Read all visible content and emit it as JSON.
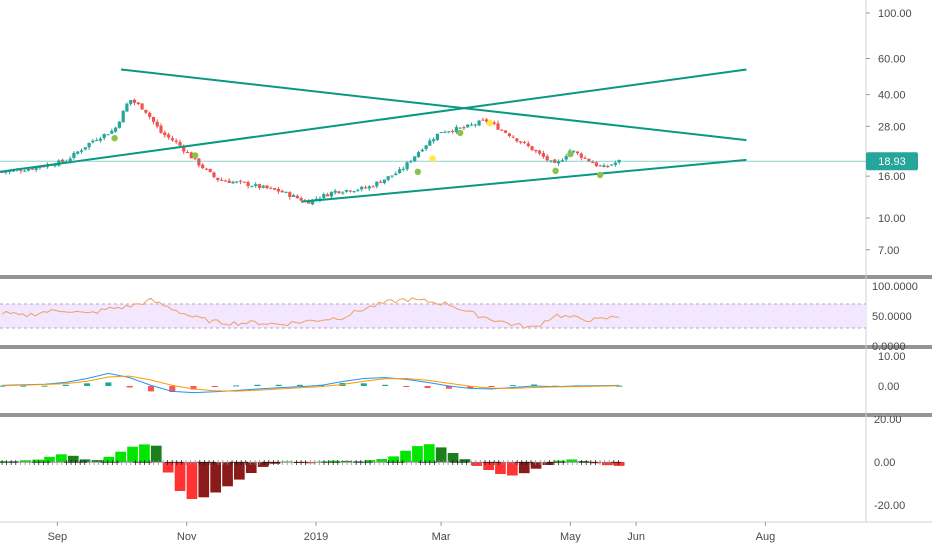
{
  "colors": {
    "up": "#26a69a",
    "down": "#ef5350",
    "trendline": "#089981",
    "rsi_line": "#f0a060",
    "rsi_band": "#f3e6ff",
    "macd_line": "#2196f3",
    "signal_line": "#ff9800",
    "squeeze_light_green": "#00e600",
    "squeeze_dark_green": "#1b7f1b",
    "squeeze_red": "#ff3333",
    "squeeze_dark_red": "#8b1a1a",
    "price_badge": "#26a69a",
    "marker_green": "#8bc34a",
    "marker_yellow": "#ffeb3b"
  },
  "price_badge": "18.93",
  "chart_data": [
    {
      "type": "candlestick",
      "pane": "price",
      "scale": "log",
      "ylim": [
        5.5,
        120
      ],
      "y_ticks": [
        "100.00",
        "60.00",
        "40.00",
        "28.00",
        "16.00",
        "10.00",
        "7.00"
      ],
      "x_ticks": [
        "Sep",
        "Nov",
        "2019",
        "Mar",
        "May",
        "Jun",
        "Aug"
      ],
      "last_price": 18.93,
      "approx_close_path": [
        {
          "x": "2018-08-01",
          "y": 16.5
        },
        {
          "x": "2018-08-20",
          "y": 17.5
        },
        {
          "x": "2018-09-05",
          "y": 19.0
        },
        {
          "x": "2018-09-18",
          "y": 24.0
        },
        {
          "x": "2018-09-28",
          "y": 27.0
        },
        {
          "x": "2018-10-05",
          "y": 38.0
        },
        {
          "x": "2018-10-12",
          "y": 34.0
        },
        {
          "x": "2018-10-20",
          "y": 26.0
        },
        {
          "x": "2018-10-28",
          "y": 23.0
        },
        {
          "x": "2018-11-05",
          "y": 19.0
        },
        {
          "x": "2018-11-15",
          "y": 15.5
        },
        {
          "x": "2018-12-01",
          "y": 14.5
        },
        {
          "x": "2018-12-15",
          "y": 13.5
        },
        {
          "x": "2018-12-28",
          "y": 12.0
        },
        {
          "x": "2019-01-10",
          "y": 13.5
        },
        {
          "x": "2019-01-25",
          "y": 14.0
        },
        {
          "x": "2019-02-10",
          "y": 17.0
        },
        {
          "x": "2019-02-20",
          "y": 22.0
        },
        {
          "x": "2019-03-01",
          "y": 26.5
        },
        {
          "x": "2019-03-12",
          "y": 27.5
        },
        {
          "x": "2019-03-22",
          "y": 30.0
        },
        {
          "x": "2019-04-01",
          "y": 26.0
        },
        {
          "x": "2019-04-12",
          "y": 22.0
        },
        {
          "x": "2019-04-24",
          "y": 18.0
        },
        {
          "x": "2019-05-01",
          "y": 21.5
        },
        {
          "x": "2019-05-10",
          "y": 19.0
        },
        {
          "x": "2019-05-16",
          "y": 17.5
        },
        {
          "x": "2019-05-24",
          "y": 18.93
        }
      ],
      "trendlines": [
        {
          "x1": "2018-08-01",
          "y1": 16.6,
          "x2": "2019-07-23",
          "y2": 53.0
        },
        {
          "x1": "2018-10-01",
          "y1": 53.0,
          "x2": "2019-07-23",
          "y2": 24.0
        },
        {
          "x1": "2018-12-25",
          "y1": 12.0,
          "x2": "2019-07-23",
          "y2": 19.2
        }
      ]
    },
    {
      "type": "line",
      "pane": "rsi",
      "ylim": [
        0,
        100
      ],
      "y_ticks": [
        "100.0000",
        "50.0000",
        "0.0000"
      ],
      "band": [
        30,
        70
      ],
      "series": [
        {
          "values": [
            55,
            50,
            57,
            60,
            53,
            62,
            66,
            76,
            62,
            48,
            40,
            38,
            39,
            36,
            40,
            44,
            48,
            62,
            72,
            78,
            74,
            70,
            55,
            45,
            36,
            30,
            52,
            46,
            43,
            50
          ]
        }
      ]
    },
    {
      "type": "line",
      "pane": "macd",
      "ylim": [
        -4,
        10
      ],
      "y_ticks": [
        "10.00",
        "0.00"
      ],
      "series": [
        {
          "values": [
            0.2,
            0.4,
            0.6,
            1.2,
            2.5,
            4.2,
            2.8,
            0.2,
            -1.8,
            -2.2,
            -1.9,
            -1.5,
            -1.0,
            -0.6,
            -0.2,
            0.2,
            1.5,
            2.5,
            2.8,
            2.2,
            1.2,
            0.0,
            -0.8,
            -1.0,
            -0.5,
            0.0,
            -0.2,
            0.0,
            0.1,
            0.2
          ]
        },
        {
          "values": [
            0.1,
            0.3,
            0.5,
            0.8,
            1.6,
            3.0,
            3.3,
            2.0,
            0.2,
            -1.0,
            -1.6,
            -1.7,
            -1.4,
            -1.0,
            -0.6,
            -0.2,
            0.5,
            1.6,
            2.4,
            2.5,
            1.9,
            0.9,
            -0.1,
            -0.7,
            -0.8,
            -0.5,
            -0.3,
            -0.2,
            -0.1,
            0.1
          ]
        }
      ]
    },
    {
      "type": "bar",
      "pane": "momentum",
      "ylim": [
        -25,
        25
      ],
      "y_ticks": [
        "20.00",
        "0.00",
        "-20.00"
      ],
      "series": [
        {
          "values": [
            0.4,
            0.3,
            0.8,
            1.1,
            2.4,
            3.6,
            2.9,
            1.2,
            0.9,
            2.4,
            4.8,
            7.1,
            8.2,
            7.6,
            -4.9,
            -13.5,
            -17.2,
            -16.4,
            -14.2,
            -11.3,
            -8.2,
            -5.1,
            -2.3,
            -0.8,
            0.3,
            -0.4,
            -0.6,
            0.3,
            0.6,
            0.5,
            0.3,
            0.9,
            1.4,
            2.6,
            5.2,
            7.4,
            8.3,
            6.8,
            4.2,
            1.3,
            -1.8,
            -3.7,
            -5.6,
            -6.3,
            -5.2,
            -3.1,
            -1.4,
            0.6,
            1.2,
            0.4,
            -0.6,
            -1.5,
            -1.8
          ]
        }
      ]
    }
  ]
}
